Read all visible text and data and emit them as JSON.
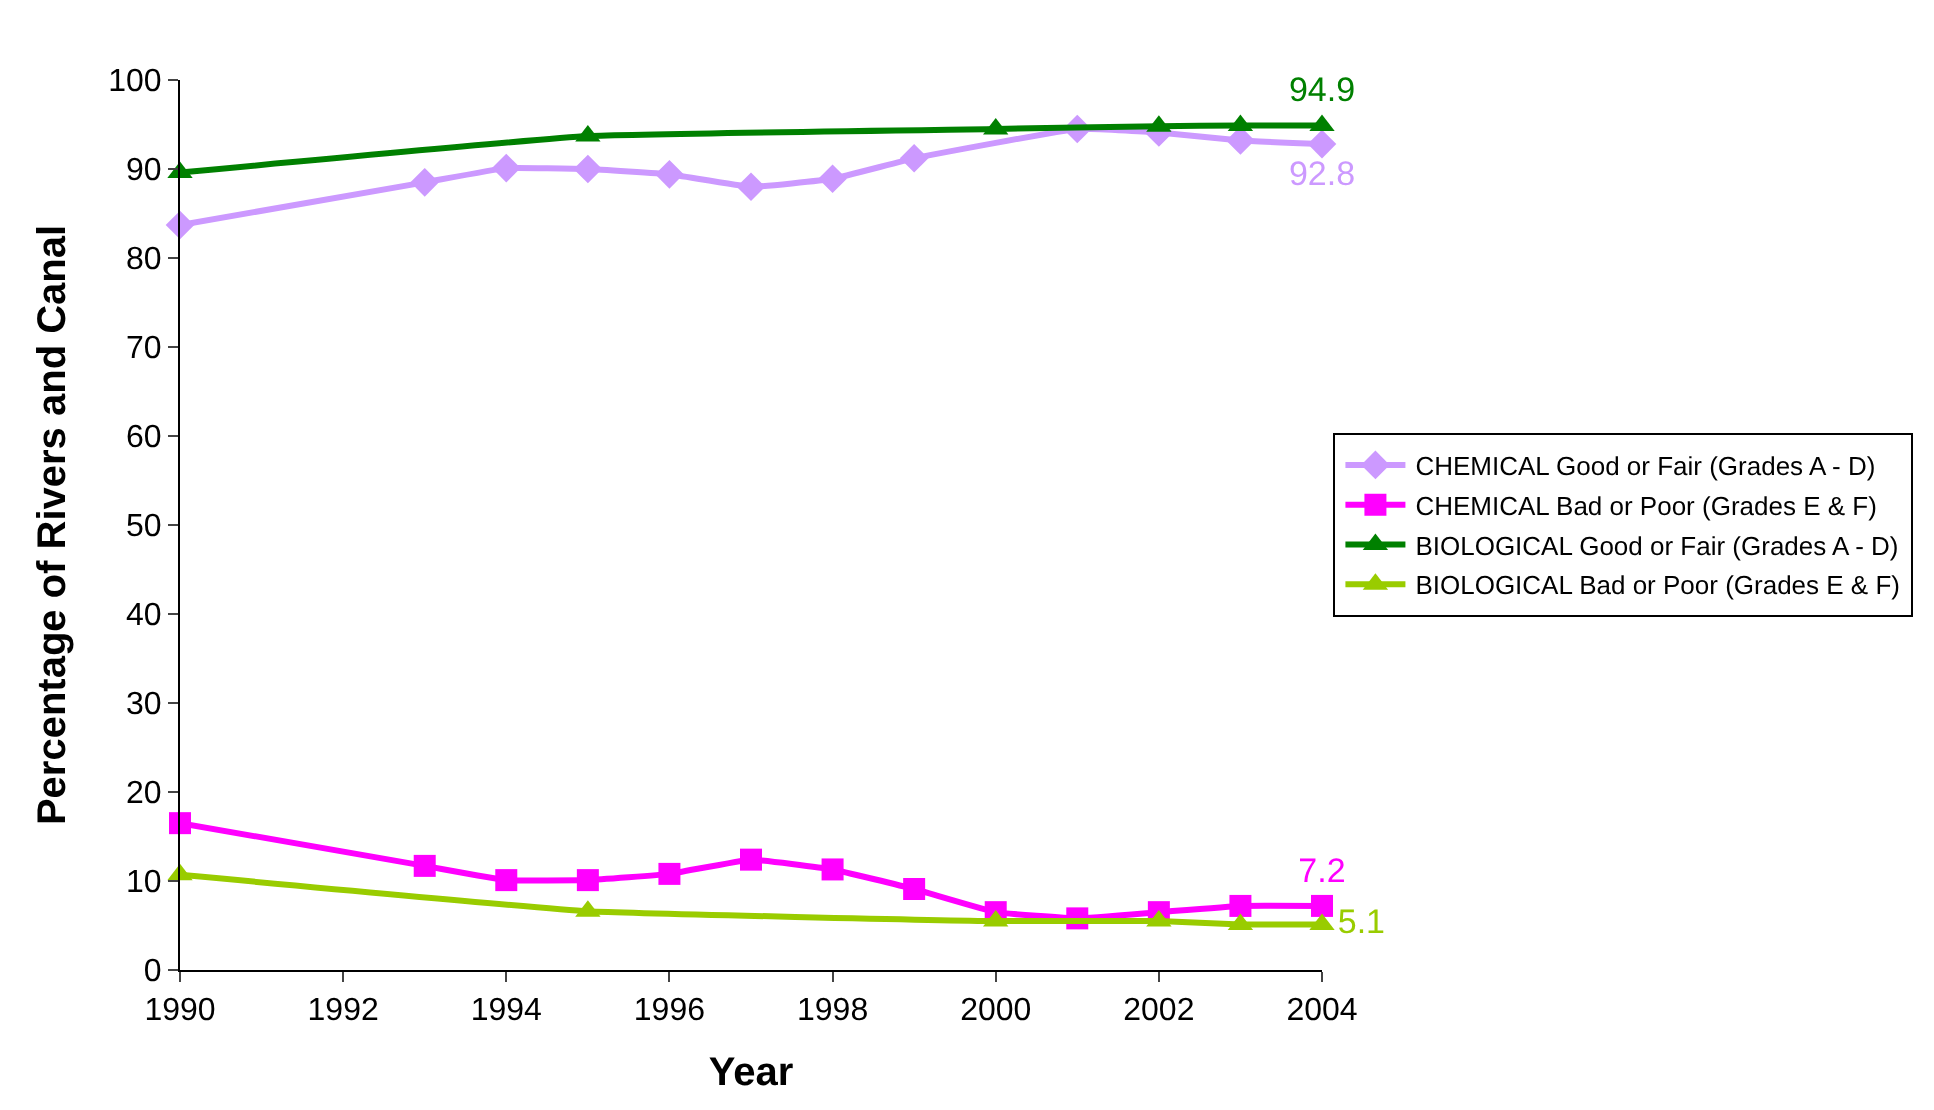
{
  "chart_data": {
    "type": "line",
    "xlabel": "Year",
    "ylabel": "Percentage of Rivers and Canal",
    "xlim": [
      1990,
      2004
    ],
    "xticks": [
      1990,
      1992,
      1994,
      1996,
      1998,
      2000,
      2002,
      2004
    ],
    "ylim": [
      0,
      100
    ],
    "yticks": [
      0,
      10,
      20,
      30,
      40,
      50,
      60,
      70,
      80,
      90,
      100
    ],
    "grid": false,
    "legend": "right",
    "series": [
      {
        "name": "CHEMICAL Good or Fair (Grades A - D)",
        "color": "#cc99ff",
        "marker": "diamond",
        "x": [
          1990,
          1993,
          1994,
          1995,
          1996,
          1997,
          1998,
          1999,
          2000,
          2001,
          2002,
          2003,
          2004
        ],
        "values": [
          83.7,
          88.5,
          90.1,
          90,
          89.4,
          88,
          88.9,
          91.2,
          null,
          94.5,
          94.1,
          93.2,
          92.8
        ],
        "value_labels": [
          null,
          null,
          null,
          null,
          null,
          null,
          null,
          null,
          null,
          null,
          null,
          null,
          "92.8"
        ]
      },
      {
        "name": "CHEMICAL Bad or Poor (Grades E & F)",
        "color": "#ff00ff",
        "marker": "square",
        "x": [
          1990,
          1993,
          1994,
          1995,
          1996,
          1997,
          1998,
          1999,
          2000,
          2001,
          2002,
          2003,
          2004
        ],
        "values": [
          16.5,
          11.7,
          10.1,
          10.1,
          10.8,
          12.4,
          11.3,
          9.1,
          6.5,
          5.8,
          6.5,
          7.2,
          7.2
        ],
        "value_labels": [
          null,
          null,
          null,
          null,
          null,
          null,
          null,
          null,
          null,
          null,
          null,
          null,
          "7.2"
        ]
      },
      {
        "name": "BIOLOGICAL Good or Fair (Grades A - D)",
        "color": "#008000",
        "marker": "triangle",
        "x": [
          1990,
          1995,
          2000,
          2002,
          2003,
          2004
        ],
        "values": [
          89.6,
          93.7,
          94.5,
          94.8,
          94.9,
          94.9
        ],
        "value_labels": [
          null,
          null,
          null,
          null,
          null,
          "94.9"
        ]
      },
      {
        "name": "BIOLOGICAL Bad or Poor (Grades E & F)",
        "color": "#99cc00",
        "marker": "triangle",
        "x": [
          1990,
          1995,
          2000,
          2002,
          2003,
          2004
        ],
        "values": [
          10.7,
          6.6,
          5.5,
          5.5,
          5.1,
          5.1
        ],
        "value_labels": [
          null,
          null,
          null,
          null,
          null,
          "5.1"
        ]
      }
    ]
  }
}
